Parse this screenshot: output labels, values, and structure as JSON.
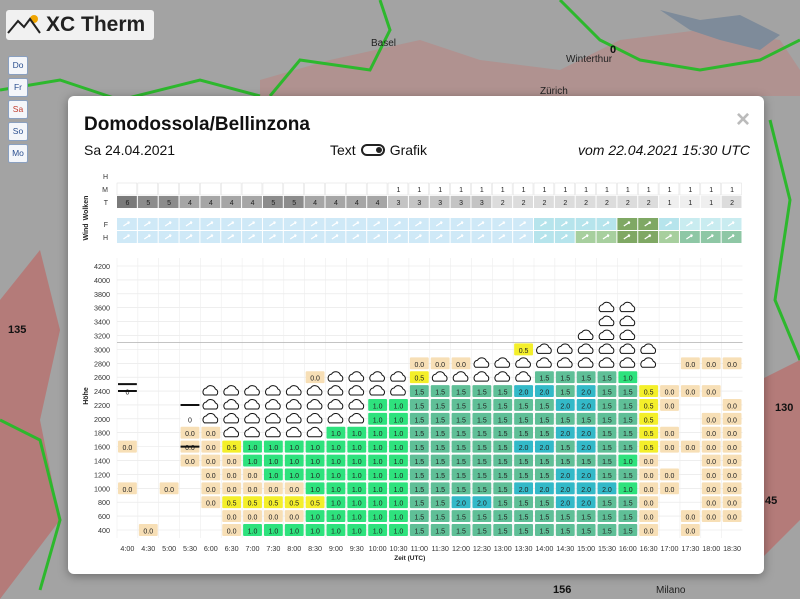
{
  "app": {
    "title": "XC Therm"
  },
  "day_nav": {
    "items": [
      "Do",
      "Fr",
      "Sa",
      "So",
      "Mo"
    ],
    "active": "Sa"
  },
  "map": {
    "cities": [
      "Basel",
      "Winterthur",
      "Zürich",
      "Milano"
    ],
    "numbers": [
      "0",
      "135",
      "130",
      "45",
      "156"
    ]
  },
  "modal": {
    "title": "Domodossola/Bellinzona",
    "date": "Sa 24.04.2021",
    "toggle_text": "Text",
    "toggle_graphic": "Grafik",
    "issued": "vom 22.04.2021 15:30 UTC",
    "close": "×"
  },
  "chart_data": {
    "type": "heatmap",
    "xlabel": "Zeit (UTC)",
    "ylabel": "Höhe",
    "x": [
      "4:00",
      "4:30",
      "5:00",
      "5:30",
      "6:00",
      "6:30",
      "7:00",
      "7:30",
      "8:00",
      "8:30",
      "9:00",
      "9:30",
      "10:00",
      "10:30",
      "11:00",
      "11:30",
      "12:00",
      "12:30",
      "13:00",
      "13:30",
      "14:00",
      "14:30",
      "15:00",
      "15:30",
      "16:00",
      "16:30",
      "17:00",
      "17:30",
      "18:00",
      "18:30"
    ],
    "y": [
      400,
      600,
      800,
      1000,
      1200,
      1400,
      1600,
      1800,
      2000,
      2200,
      2400,
      2600,
      2800,
      3000,
      3200,
      3400,
      3600,
      3800,
      4000,
      4200
    ],
    "cloud_labels": {
      "section": "Wolken",
      "rows": [
        "H",
        "M",
        "T"
      ]
    },
    "wind_labels": {
      "section": "Wind",
      "rows": [
        "F",
        "H"
      ]
    },
    "clouds_M": [
      "",
      "",
      "",
      "",
      "",
      "",
      "",
      "",
      "",
      "",
      "",
      "",
      "",
      "1",
      "1",
      "1",
      "1",
      "1",
      "1",
      "1",
      "1",
      "1",
      "1",
      "1",
      "1",
      "1",
      "1",
      "1",
      "1",
      "1"
    ],
    "clouds_T": [
      "6",
      "5",
      "5",
      "4",
      "4",
      "4",
      "4",
      "5",
      "5",
      "4",
      "4",
      "4",
      "4",
      "3",
      "3",
      "3",
      "3",
      "3",
      "2",
      "2",
      "2",
      "2",
      "2",
      "2",
      "2",
      "2",
      "1",
      "1",
      "1",
      "2"
    ],
    "cloud_row_T_values_note": "",
    "columns": [
      {
        "t": "4:00",
        "cells": {
          "600": "",
          "800": "",
          "1000": "0.0",
          "1200": "",
          "1400": "",
          "1600": "0.0",
          "1800": "",
          "2000": "",
          "2200": "",
          "2400": "0"
        },
        "marker": [
          2300,
          2400
        ],
        "cloud": []
      },
      {
        "t": "4:30",
        "cells": {
          "400": "0.0"
        },
        "marker": [],
        "cloud": []
      },
      {
        "t": "5:00",
        "cells": {
          "1000": "0.0"
        },
        "marker": [],
        "cloud": []
      },
      {
        "t": "5:30",
        "cells": {
          "1400": "0.0",
          "1600": "0.0",
          "1800": "0.0",
          "2000": "0"
        },
        "marker": [
          1500,
          2100
        ],
        "cloud": []
      },
      {
        "t": "6:00",
        "cells": {
          "800": "0.0",
          "1000": "0.0",
          "1200": "0.0",
          "1400": "0.0",
          "1600": "0.0",
          "1800": "0.0"
        },
        "marker": [],
        "cloud": [
          2000,
          2400
        ]
      },
      {
        "t": "6:30",
        "cells": {
          "400": "0.0",
          "600": "0.0",
          "800": "0.5",
          "1000": "0.0",
          "1200": "0.0",
          "1400": "0.0",
          "1600": "0.5"
        },
        "marker": [],
        "cloud": [
          1800,
          2400
        ]
      },
      {
        "t": "7:00",
        "cells": {
          "400": "1.0",
          "600": "0.0",
          "800": "0.5",
          "1000": "0.0",
          "1200": "0.0",
          "1400": "1.0",
          "1600": "1.0"
        },
        "marker": [],
        "cloud": [
          1800,
          2400
        ]
      },
      {
        "t": "7:30",
        "cells": {
          "400": "1.0",
          "600": "0.0",
          "800": "0.5",
          "1000": "0.0",
          "1200": "1.0",
          "1400": "1.0",
          "1600": "1.0"
        },
        "marker": [],
        "cloud": [
          1800,
          2400
        ]
      },
      {
        "t": "8:00",
        "cells": {
          "400": "1.0",
          "600": "0.0",
          "800": "0.5",
          "1000": "0.0",
          "1200": "1.0",
          "1400": "1.0",
          "1600": "1.0"
        },
        "marker": [],
        "cloud": [
          1800,
          2400
        ]
      },
      {
        "t": "8:30",
        "cells": {
          "400": "1.0",
          "600": "1.0",
          "800": "0.5",
          "1000": "1.0",
          "1200": "1.0",
          "1400": "1.0",
          "1600": "1.0",
          "2600": "0.0"
        },
        "marker": [],
        "cloud": [
          1800,
          2400
        ]
      },
      {
        "t": "9:00",
        "cells": {
          "400": "1.0",
          "600": "1.0",
          "800": "1.0",
          "1000": "1.0",
          "1200": "1.0",
          "1400": "1.0",
          "1600": "1.0",
          "1800": "1.0"
        },
        "marker": [],
        "cloud": [
          2000,
          2600
        ]
      },
      {
        "t": "9:30",
        "cells": {
          "400": "1.0",
          "600": "1.0",
          "800": "1.0",
          "1000": "1.0",
          "1200": "1.0",
          "1400": "1.0",
          "1600": "1.0",
          "1800": "1.0"
        },
        "marker": [],
        "cloud": [
          2000,
          2600
        ]
      },
      {
        "t": "10:00",
        "cells": {
          "400": "1.0",
          "600": "1.0",
          "800": "1.0",
          "1000": "1.0",
          "1200": "1.0",
          "1400": "1.0",
          "1600": "1.0",
          "1800": "1.0",
          "2000": "1.0",
          "2200": "1.0"
        },
        "marker": [],
        "cloud": [
          2400,
          2600
        ]
      },
      {
        "t": "10:30",
        "cells": {
          "400": "1.0",
          "600": "1.0",
          "800": "1.0",
          "1000": "1.0",
          "1200": "1.0",
          "1400": "1.0",
          "1600": "1.0",
          "1800": "1.0",
          "2000": "1.0",
          "2200": "1.0"
        },
        "marker": [],
        "cloud": [
          2400,
          2600
        ]
      },
      {
        "t": "11:00",
        "cells": {
          "400": "1.5",
          "600": "1.5",
          "800": "1.5",
          "1000": "1.5",
          "1200": "1.5",
          "1400": "1.5",
          "1600": "1.5",
          "1800": "1.5",
          "2000": "1.5",
          "2200": "1.5",
          "2400": "1.5",
          "2600": "0.5",
          "2800": "0.0"
        },
        "marker": [],
        "cloud": []
      },
      {
        "t": "11:30",
        "cells": {
          "400": "1.5",
          "600": "1.5",
          "800": "1.5",
          "1000": "1.5",
          "1200": "1.5",
          "1400": "1.5",
          "1600": "1.5",
          "1800": "1.5",
          "2000": "1.5",
          "2200": "1.5",
          "2400": "1.5",
          "2800": "0.0"
        },
        "marker": [],
        "cloud": [
          2600,
          2600
        ]
      },
      {
        "t": "12:00",
        "cells": {
          "400": "1.5",
          "600": "1.5",
          "800": "2.0",
          "1000": "1.5",
          "1200": "1.5",
          "1400": "1.5",
          "1600": "1.5",
          "1800": "1.5",
          "2000": "1.5",
          "2200": "1.5",
          "2400": "1.5",
          "2800": "0.0"
        },
        "marker": [],
        "cloud": [
          2600,
          2600
        ]
      },
      {
        "t": "12:30",
        "cells": {
          "400": "1.5",
          "600": "1.5",
          "800": "2.0",
          "1000": "1.5",
          "1200": "1.5",
          "1400": "1.5",
          "1600": "1.5",
          "1800": "1.5",
          "2000": "1.5",
          "2200": "1.5",
          "2400": "1.5"
        },
        "marker": [],
        "cloud": [
          2600,
          2800
        ]
      },
      {
        "t": "13:00",
        "cells": {
          "400": "1.5",
          "600": "1.5",
          "800": "1.5",
          "1000": "1.5",
          "1200": "1.5",
          "1400": "1.5",
          "1600": "1.5",
          "1800": "1.5",
          "2000": "1.5",
          "2200": "1.5",
          "2400": "1.5"
        },
        "marker": [],
        "cloud": [
          2600,
          2800
        ]
      },
      {
        "t": "13:30",
        "cells": {
          "400": "1.5",
          "600": "1.5",
          "800": "1.5",
          "1000": "2.0",
          "1200": "1.5",
          "1400": "1.5",
          "1600": "2.0",
          "1800": "1.5",
          "2000": "1.5",
          "2200": "1.5",
          "2400": "2.0",
          "3000": "0.5"
        },
        "marker": [],
        "cloud": [
          2600,
          2800
        ]
      },
      {
        "t": "14:00",
        "cells": {
          "400": "1.5",
          "600": "1.5",
          "800": "1.5",
          "1000": "2.0",
          "1200": "1.5",
          "1400": "1.5",
          "1600": "2.0",
          "1800": "1.5",
          "2000": "1.5",
          "2200": "1.5",
          "2400": "2.0",
          "2600": "1.5"
        },
        "marker": [],
        "cloud": [
          2800,
          3000
        ]
      },
      {
        "t": "14:30",
        "cells": {
          "400": "1.5",
          "600": "1.5",
          "800": "2.0",
          "1000": "2.0",
          "1200": "2.0",
          "1400": "1.5",
          "1600": "1.5",
          "1800": "2.0",
          "2000": "1.5",
          "2200": "2.0",
          "2400": "1.5",
          "2600": "1.5"
        },
        "marker": [],
        "cloud": [
          2800,
          3000
        ]
      },
      {
        "t": "15:00",
        "cells": {
          "400": "1.5",
          "600": "1.5",
          "800": "2.0",
          "1000": "2.0",
          "1200": "2.0",
          "1400": "1.5",
          "1600": "2.0",
          "1800": "2.0",
          "2000": "1.5",
          "2200": "2.0",
          "2400": "2.0",
          "2600": "1.5"
        },
        "marker": [],
        "cloud": [
          2800,
          3200
        ]
      },
      {
        "t": "15:30",
        "cells": {
          "400": "1.5",
          "600": "1.5",
          "800": "1.5",
          "1000": "2.0",
          "1200": "1.5",
          "1400": "1.5",
          "1600": "1.5",
          "1800": "1.5",
          "2000": "1.5",
          "2200": "1.5",
          "2400": "1.5",
          "2600": "1.5"
        },
        "marker": [],
        "cloud": [
          2800,
          3600
        ]
      },
      {
        "t": "16:00",
        "cells": {
          "400": "1.5",
          "600": "1.5",
          "800": "1.5",
          "1000": "1.0",
          "1200": "1.5",
          "1400": "1.0",
          "1600": "1.5",
          "1800": "1.5",
          "2000": "1.5",
          "2200": "1.5",
          "2400": "1.5",
          "2600": "1.0"
        },
        "marker": [],
        "cloud": [
          2800,
          3600
        ]
      },
      {
        "t": "16:30",
        "cells": {
          "400": "0.0",
          "600": "0.0",
          "800": "0.0",
          "1000": "0.0",
          "1200": "0.0",
          "1400": "0.0",
          "1600": "0.5",
          "1800": "0.5",
          "2000": "0.5",
          "2200": "0.5",
          "2400": "0.5"
        },
        "marker": [],
        "cloud": [
          2800,
          3000
        ]
      },
      {
        "t": "17:00",
        "cells": {
          "1000": "0.0",
          "1200": "0.0",
          "1400": "",
          "1600": "0.0",
          "1800": "0.0",
          "2200": "0.0",
          "2400": "0.0"
        },
        "marker": [],
        "cloud": []
      },
      {
        "t": "17:30",
        "cells": {
          "400": "0.0",
          "600": "0.0",
          "1600": "0.0",
          "2400": "0.0",
          "2800": "0.0"
        },
        "marker": [],
        "cloud": []
      },
      {
        "t": "18:00",
        "cells": {
          "400": "",
          "600": "0.0",
          "800": "0.0",
          "1000": "0.0",
          "1200": "0.0",
          "1400": "0.0",
          "1600": "0.0",
          "1800": "0.0",
          "2000": "0.0",
          "2400": "0.0",
          "2800": "0.0"
        },
        "marker": [],
        "cloud": []
      },
      {
        "t": "18:30",
        "cells": {
          "400": "",
          "600": "0.0",
          "800": "0.0",
          "1000": "0.0",
          "1200": "0.0",
          "1400": "0.0",
          "1600": "0.0",
          "1800": "0.0",
          "2000": "0.0",
          "2200": "0.0",
          "2800": "0.0"
        },
        "marker": [],
        "cloud": []
      }
    ],
    "colors": {
      "0.0": "#f7dfb6",
      "0.5": "#f4ef2a",
      "1.0": "#2ee27d",
      "1.5": "#5fbf97",
      "2.0": "#33b9c8"
    }
  }
}
